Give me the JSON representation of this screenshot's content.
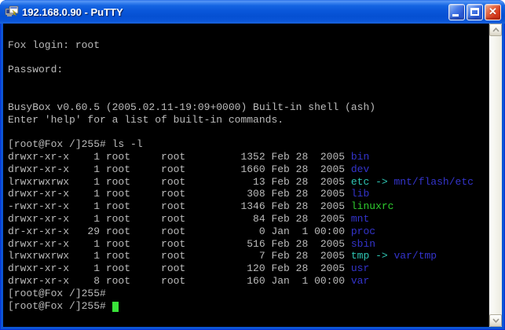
{
  "window": {
    "title": "192.168.0.90 - PuTTY",
    "controls": {
      "minimize_label": "minimize",
      "maximize_label": "maximize",
      "close_label": "close",
      "close_glyph": "✕"
    }
  },
  "colors": {
    "titlebar_blue": "#0a55d8",
    "border_blue": "#0c55d4",
    "terminal_background": "#000000",
    "text": "#bbbbbb",
    "directory": "#3434cd",
    "symlink": "#2fc6b4",
    "executable": "#2ecc2e",
    "cursor": "#3ae33a",
    "close_button_red": "#d83a1b"
  },
  "terminal": {
    "lines": [
      [],
      [
        {
          "t": "Fox login: root"
        }
      ],
      [],
      [
        {
          "t": "Password:"
        }
      ],
      [],
      [],
      [
        {
          "t": "BusyBox v0.60.5 (2005.02.11-19:09+0000) Built-in shell (ash)"
        }
      ],
      [
        {
          "t": "Enter 'help' for a list of built-in commands."
        }
      ],
      [],
      [
        {
          "t": "[root@Fox /]255# ls -l"
        }
      ],
      [
        {
          "t": "drwxr-xr-x    1 root     root         1352 Feb 28  2005 "
        },
        {
          "t": "bin",
          "c": "directory"
        }
      ],
      [
        {
          "t": "drwxr-xr-x    1 root     root         1660 Feb 28  2005 "
        },
        {
          "t": "dev",
          "c": "directory"
        }
      ],
      [
        {
          "t": "lrwxrwxrwx    1 root     root           13 Feb 28  2005 "
        },
        {
          "t": "etc",
          "c": "symlink"
        },
        {
          "t": " -> ",
          "c": "symlink"
        },
        {
          "t": "mnt/flash/etc",
          "c": "directory"
        }
      ],
      [
        {
          "t": "drwxr-xr-x    1 root     root          308 Feb 28  2005 "
        },
        {
          "t": "lib",
          "c": "directory"
        }
      ],
      [
        {
          "t": "-rwxr-xr-x    1 root     root         1346 Feb 28  2005 "
        },
        {
          "t": "linuxrc",
          "c": "executable"
        }
      ],
      [
        {
          "t": "drwxr-xr-x    1 root     root           84 Feb 28  2005 "
        },
        {
          "t": "mnt",
          "c": "directory"
        }
      ],
      [
        {
          "t": "dr-xr-xr-x   29 root     root            0 Jan  1 00:00 "
        },
        {
          "t": "proc",
          "c": "directory"
        }
      ],
      [
        {
          "t": "drwxr-xr-x    1 root     root          516 Feb 28  2005 "
        },
        {
          "t": "sbin",
          "c": "directory"
        }
      ],
      [
        {
          "t": "lrwxrwxrwx    1 root     root            7 Feb 28  2005 "
        },
        {
          "t": "tmp",
          "c": "symlink"
        },
        {
          "t": " -> ",
          "c": "symlink"
        },
        {
          "t": "var/tmp",
          "c": "directory"
        }
      ],
      [
        {
          "t": "drwxr-xr-x    1 root     root          120 Feb 28  2005 "
        },
        {
          "t": "usr",
          "c": "directory"
        }
      ],
      [
        {
          "t": "drwxr-xr-x    8 root     root          160 Jan  1 00:00 "
        },
        {
          "t": "var",
          "c": "directory"
        }
      ],
      [
        {
          "t": "[root@Fox /]255#"
        }
      ],
      [
        {
          "t": "[root@Fox /]255# "
        },
        {
          "cursor": true
        }
      ]
    ]
  },
  "scrollbar": {
    "up_icon": "scroll-up",
    "down_icon": "scroll-down"
  },
  "title_icon": "putty-terminals-lightning"
}
